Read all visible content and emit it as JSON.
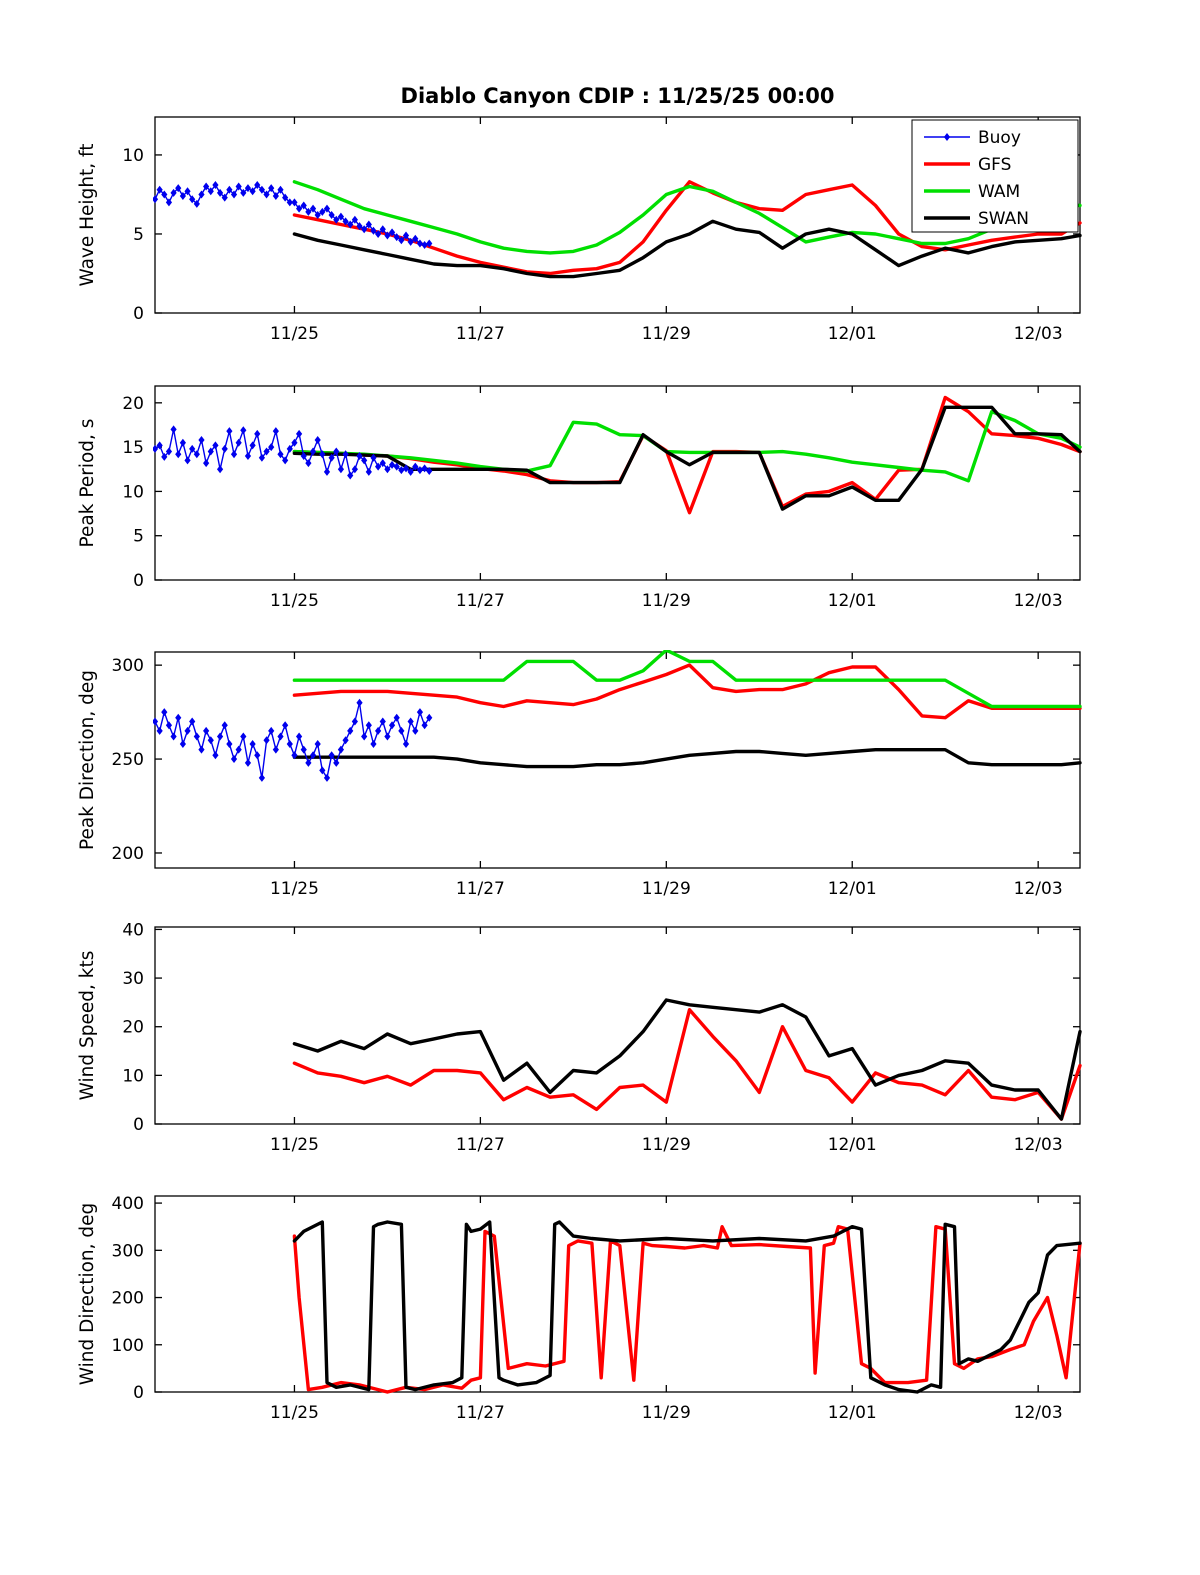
{
  "title": "Diablo Canyon CDIP : 11/25/25 00:00",
  "legend": {
    "entries": [
      {
        "label": "Buoy",
        "color": "#0000EE",
        "width": 1.4,
        "marker": "diamond"
      },
      {
        "label": "GFS",
        "color": "#FF0000",
        "width": 3.4
      },
      {
        "label": "WAM",
        "color": "#00DF00",
        "width": 3.4
      },
      {
        "label": "SWAN",
        "color": "#000000",
        "width": 3.4
      }
    ]
  },
  "x_axis": {
    "lim": [
      -1.5,
      8.45
    ],
    "ticks": [
      {
        "v": 0,
        "label": "11/25"
      },
      {
        "v": 2,
        "label": "11/27"
      },
      {
        "v": 4,
        "label": "11/29"
      },
      {
        "v": 6,
        "label": "12/01"
      },
      {
        "v": 8,
        "label": "12/03"
      }
    ]
  },
  "shared_x": {
    "model_x": [
      0,
      0.25,
      0.5,
      0.75,
      1,
      1.25,
      1.5,
      1.75,
      2,
      2.25,
      2.5,
      2.75,
      3,
      3.25,
      3.5,
      3.75,
      4,
      4.25,
      4.5,
      4.75,
      5,
      5.25,
      5.5,
      5.75,
      6,
      6.25,
      6.5,
      6.75,
      7,
      7.25,
      7.5,
      7.75,
      8,
      8.25,
      8.45
    ],
    "buoy_x": [
      -1.5,
      -1.45,
      -1.4,
      -1.35,
      -1.3,
      -1.25,
      -1.2,
      -1.15,
      -1.1,
      -1.05,
      -1.0,
      -0.95,
      -0.9,
      -0.85,
      -0.8,
      -0.75,
      -0.7,
      -0.65,
      -0.6,
      -0.55,
      -0.5,
      -0.45,
      -0.4,
      -0.35,
      -0.3,
      -0.25,
      -0.2,
      -0.15,
      -0.1,
      -0.05,
      0.0,
      0.05,
      0.1,
      0.15,
      0.2,
      0.25,
      0.3,
      0.35,
      0.4,
      0.45,
      0.5,
      0.55,
      0.6,
      0.65,
      0.7,
      0.75,
      0.8,
      0.85,
      0.9,
      0.95,
      1.0,
      1.05,
      1.1,
      1.15,
      1.2,
      1.25,
      1.3,
      1.35,
      1.4,
      1.45
    ]
  },
  "chart_data": [
    {
      "type": "line",
      "id": "wave-height",
      "ylabel": "Wave Height, ft",
      "ylim": [
        0,
        12.4
      ],
      "yticks": [
        0,
        5,
        10
      ],
      "series": [
        {
          "name": "GFS",
          "color": "#FF0000",
          "width": 3.4,
          "x_ref": "model_x",
          "y": [
            6.2,
            5.9,
            5.6,
            5.3,
            5.0,
            4.6,
            4.1,
            3.6,
            3.2,
            2.9,
            2.6,
            2.5,
            2.7,
            2.8,
            3.2,
            4.5,
            6.5,
            8.3,
            7.6,
            7.0,
            6.6,
            6.5,
            7.5,
            7.8,
            8.1,
            6.8,
            5.0,
            4.2,
            4.0,
            4.3,
            4.6,
            4.8,
            5.0,
            5.0,
            5.7
          ]
        },
        {
          "name": "WAM",
          "color": "#00DF00",
          "width": 3.4,
          "x_ref": "model_x",
          "y": [
            8.3,
            7.8,
            7.2,
            6.6,
            6.2,
            5.8,
            5.4,
            5.0,
            4.5,
            4.1,
            3.9,
            3.8,
            3.9,
            4.3,
            5.1,
            6.2,
            7.5,
            8.0,
            7.7,
            7.0,
            6.3,
            5.4,
            4.5,
            4.8,
            5.1,
            5.0,
            4.7,
            4.4,
            4.4,
            4.7,
            5.3,
            5.9,
            6.5,
            6.9,
            6.8
          ]
        },
        {
          "name": "SWAN",
          "color": "#000000",
          "width": 3.4,
          "x_ref": "model_x",
          "y": [
            5.0,
            4.6,
            4.3,
            4.0,
            3.7,
            3.4,
            3.1,
            3.0,
            3.0,
            2.8,
            2.5,
            2.3,
            2.3,
            2.5,
            2.7,
            3.5,
            4.5,
            5.0,
            5.8,
            5.3,
            5.1,
            4.1,
            5.0,
            5.3,
            5.0,
            4.0,
            3.0,
            3.6,
            4.1,
            3.8,
            4.2,
            4.5,
            4.6,
            4.7,
            4.9
          ]
        },
        {
          "name": "Buoy",
          "color": "#0000EE",
          "width": 1.4,
          "marker": "diamond",
          "x_ref": "buoy_x",
          "y": [
            7.2,
            7.8,
            7.5,
            7.0,
            7.6,
            7.9,
            7.4,
            7.7,
            7.2,
            6.9,
            7.5,
            8.0,
            7.7,
            8.1,
            7.6,
            7.3,
            7.8,
            7.5,
            8.0,
            7.6,
            7.9,
            7.7,
            8.1,
            7.8,
            7.5,
            7.9,
            7.4,
            7.8,
            7.3,
            7.0,
            7.0,
            6.6,
            6.8,
            6.4,
            6.6,
            6.2,
            6.4,
            6.6,
            6.2,
            5.9,
            6.1,
            5.8,
            5.6,
            5.9,
            5.5,
            5.3,
            5.6,
            5.2,
            5.0,
            5.3,
            4.9,
            5.1,
            4.8,
            4.6,
            4.9,
            4.5,
            4.7,
            4.4,
            4.3,
            4.4
          ]
        }
      ]
    },
    {
      "type": "line",
      "id": "peak-period",
      "ylabel": "Peak Period, s",
      "ylim": [
        0,
        21.9
      ],
      "yticks": [
        0,
        5,
        10,
        15,
        20
      ],
      "series": [
        {
          "name": "GFS",
          "color": "#FF0000",
          "width": 3.4,
          "x_ref": "model_x",
          "y": [
            14.5,
            14.4,
            14.3,
            14.1,
            14.0,
            13.7,
            13.3,
            13.0,
            12.6,
            12.3,
            11.9,
            11.2,
            11.0,
            11.0,
            11.1,
            16.3,
            14.6,
            7.6,
            14.5,
            14.5,
            14.4,
            8.3,
            9.7,
            10.0,
            11.0,
            9.1,
            12.4,
            12.5,
            20.6,
            19.0,
            16.5,
            16.3,
            16.0,
            15.3,
            14.5
          ]
        },
        {
          "name": "WAM",
          "color": "#00DF00",
          "width": 3.4,
          "x_ref": "model_x",
          "y": [
            14.5,
            14.4,
            14.3,
            14.2,
            14.0,
            13.8,
            13.5,
            13.2,
            12.8,
            12.5,
            12.3,
            12.9,
            17.8,
            17.6,
            16.4,
            16.3,
            14.5,
            14.4,
            14.4,
            14.4,
            14.4,
            14.5,
            14.2,
            13.8,
            13.3,
            13.0,
            12.7,
            12.4,
            12.2,
            11.2,
            19.0,
            18.0,
            16.5,
            16.0,
            15.0
          ]
        },
        {
          "name": "SWAN",
          "color": "#000000",
          "width": 3.4,
          "x_ref": "model_x",
          "y": [
            14.3,
            14.2,
            14.2,
            14.1,
            14.0,
            12.5,
            12.5,
            12.5,
            12.5,
            12.5,
            12.4,
            11.0,
            11.0,
            11.0,
            11.0,
            16.4,
            14.5,
            13.0,
            14.4,
            14.4,
            14.4,
            8.0,
            9.5,
            9.5,
            10.5,
            9.0,
            9.0,
            12.5,
            19.5,
            19.5,
            19.5,
            16.5,
            16.5,
            16.4,
            14.5
          ]
        },
        {
          "name": "Buoy",
          "color": "#0000EE",
          "width": 1.4,
          "marker": "diamond",
          "x_ref": "buoy_x",
          "y": [
            14.8,
            15.2,
            13.9,
            14.5,
            17.0,
            14.2,
            15.5,
            13.5,
            14.8,
            14.2,
            15.8,
            13.2,
            14.5,
            15.2,
            12.5,
            14.8,
            16.8,
            14.2,
            15.5,
            16.9,
            14.0,
            15.2,
            16.5,
            13.8,
            14.5,
            15.0,
            16.8,
            14.2,
            13.5,
            14.8,
            15.5,
            16.5,
            14.0,
            13.2,
            14.5,
            15.8,
            14.2,
            12.2,
            13.8,
            14.5,
            12.5,
            14.2,
            11.8,
            12.5,
            14.0,
            13.5,
            12.2,
            13.8,
            12.8,
            13.2,
            12.5,
            13.0,
            12.8,
            12.4,
            12.6,
            12.2,
            12.8,
            12.4,
            12.6,
            12.3
          ]
        }
      ]
    },
    {
      "type": "line",
      "id": "peak-direction",
      "ylabel": "Peak Direction, deg",
      "ylim": [
        192,
        307
      ],
      "yticks": [
        200,
        250,
        300
      ],
      "series": [
        {
          "name": "GFS",
          "color": "#FF0000",
          "width": 3.4,
          "x_ref": "model_x",
          "y": [
            284,
            285,
            286,
            286,
            286,
            285,
            284,
            283,
            280,
            278,
            281,
            280,
            279,
            282,
            287,
            291,
            295,
            300,
            288,
            286,
            287,
            287,
            290,
            296,
            299,
            299,
            287,
            273,
            272,
            281,
            277,
            277,
            277,
            277,
            277
          ]
        },
        {
          "name": "WAM",
          "color": "#00DF00",
          "width": 3.4,
          "x_ref": "model_x",
          "y": [
            292,
            292,
            292,
            292,
            292,
            292,
            292,
            292,
            292,
            292,
            302,
            302,
            302,
            292,
            292,
            297,
            308,
            302,
            302,
            292,
            292,
            292,
            292,
            292,
            292,
            292,
            292,
            292,
            292,
            285,
            278,
            278,
            278,
            278,
            278
          ]
        },
        {
          "name": "SWAN",
          "color": "#000000",
          "width": 3.4,
          "x_ref": "model_x",
          "y": [
            251,
            251,
            251,
            251,
            251,
            251,
            251,
            250,
            248,
            247,
            246,
            246,
            246,
            247,
            247,
            248,
            250,
            252,
            253,
            254,
            254,
            253,
            252,
            253,
            254,
            255,
            255,
            255,
            255,
            248,
            247,
            247,
            247,
            247,
            248
          ]
        },
        {
          "name": "Buoy",
          "color": "#0000EE",
          "width": 1.4,
          "marker": "diamond",
          "x_ref": "buoy_x",
          "y": [
            270,
            265,
            275,
            268,
            262,
            272,
            258,
            265,
            270,
            262,
            255,
            265,
            260,
            252,
            262,
            268,
            258,
            250,
            255,
            262,
            248,
            258,
            252,
            240,
            260,
            265,
            255,
            262,
            268,
            258,
            252,
            262,
            255,
            248,
            252,
            258,
            244,
            240,
            252,
            248,
            255,
            260,
            265,
            270,
            280,
            262,
            268,
            258,
            265,
            270,
            262,
            268,
            272,
            265,
            258,
            270,
            265,
            275,
            268,
            272
          ]
        }
      ]
    },
    {
      "type": "line",
      "id": "wind-speed",
      "ylabel": "Wind Speed, kts",
      "ylim": [
        0,
        40.5
      ],
      "yticks": [
        0,
        10,
        20,
        30,
        40
      ],
      "series": [
        {
          "name": "GFS",
          "color": "#FF0000",
          "width": 3.4,
          "x_ref": "model_x",
          "y": [
            12.5,
            10.5,
            9.8,
            8.5,
            9.8,
            8.0,
            11.0,
            11.0,
            10.5,
            5.0,
            7.5,
            5.5,
            6.0,
            3.0,
            7.5,
            8.0,
            4.5,
            23.5,
            18.0,
            13.0,
            6.5,
            20.0,
            11.0,
            9.5,
            4.5,
            10.5,
            8.5,
            8.0,
            6.0,
            11.0,
            5.5,
            5.0,
            6.5,
            1.0,
            12.0
          ]
        },
        {
          "name": "SWAN",
          "color": "#000000",
          "width": 3.4,
          "x_ref": "model_x",
          "y": [
            16.5,
            15.0,
            17.0,
            15.5,
            18.5,
            16.5,
            17.5,
            18.5,
            19.0,
            9.0,
            12.5,
            6.5,
            11.0,
            10.5,
            14.0,
            19.0,
            25.5,
            24.5,
            24.0,
            23.5,
            23.0,
            24.5,
            22.0,
            14.0,
            15.5,
            8.0,
            10.0,
            11.0,
            13.0,
            12.5,
            8.0,
            7.0,
            7.0,
            1.0,
            19.0
          ]
        }
      ]
    },
    {
      "type": "line",
      "id": "wind-direction",
      "ylabel": "Wind Direction, deg",
      "ylim": [
        0,
        415
      ],
      "yticks": [
        0,
        100,
        200,
        300,
        400
      ],
      "series": [
        {
          "name": "GFS",
          "color": "#FF0000",
          "width": 3.4,
          "x": [
            0,
            0.05,
            0.15,
            0.3,
            0.5,
            0.7,
            0.9,
            1.0,
            1.2,
            1.4,
            1.6,
            1.8,
            1.9,
            2.0,
            2.05,
            2.15,
            2.3,
            2.5,
            2.7,
            2.9,
            2.95,
            3.05,
            3.2,
            3.3,
            3.4,
            3.5,
            3.65,
            3.75,
            3.85,
            4.0,
            4.2,
            4.4,
            4.55,
            4.6,
            4.7,
            5.0,
            5.3,
            5.55,
            5.6,
            5.7,
            5.8,
            5.85,
            5.95,
            6.1,
            6.2,
            6.35,
            6.6,
            6.8,
            6.9,
            7.0,
            7.1,
            7.2,
            7.35,
            7.5,
            7.7,
            7.85,
            7.95,
            8.1,
            8.2,
            8.3,
            8.45
          ],
          "y": [
            330,
            200,
            5,
            10,
            20,
            15,
            5,
            0,
            10,
            5,
            15,
            8,
            25,
            30,
            340,
            330,
            50,
            60,
            55,
            65,
            310,
            320,
            315,
            30,
            320,
            310,
            25,
            315,
            310,
            308,
            305,
            310,
            305,
            350,
            310,
            312,
            308,
            305,
            40,
            310,
            315,
            350,
            345,
            60,
            50,
            20,
            20,
            25,
            350,
            345,
            60,
            50,
            70,
            75,
            90,
            100,
            150,
            200,
            120,
            30,
            315
          ]
        },
        {
          "name": "SWAN",
          "color": "#000000",
          "width": 3.4,
          "x": [
            0,
            0.1,
            0.3,
            0.35,
            0.45,
            0.6,
            0.8,
            0.85,
            0.9,
            1.0,
            1.15,
            1.2,
            1.3,
            1.5,
            1.7,
            1.8,
            1.85,
            1.9,
            2.0,
            2.1,
            2.2,
            2.25,
            2.4,
            2.6,
            2.75,
            2.8,
            2.85,
            2.95,
            3.0,
            3.2,
            3.5,
            4.0,
            4.5,
            5.0,
            5.5,
            5.8,
            5.9,
            6.0,
            6.1,
            6.2,
            6.35,
            6.5,
            6.7,
            6.85,
            6.95,
            7.0,
            7.1,
            7.15,
            7.25,
            7.35,
            7.5,
            7.6,
            7.7,
            7.8,
            7.9,
            8.0,
            8.1,
            8.2,
            8.45
          ],
          "y": [
            320,
            340,
            360,
            20,
            10,
            15,
            5,
            350,
            355,
            360,
            355,
            10,
            5,
            15,
            20,
            30,
            355,
            340,
            345,
            360,
            30,
            25,
            15,
            20,
            35,
            355,
            360,
            340,
            330,
            325,
            320,
            325,
            320,
            325,
            320,
            330,
            340,
            350,
            345,
            30,
            15,
            5,
            0,
            15,
            10,
            355,
            350,
            60,
            70,
            65,
            80,
            90,
            110,
            150,
            190,
            210,
            290,
            310,
            315
          ]
        }
      ]
    }
  ]
}
